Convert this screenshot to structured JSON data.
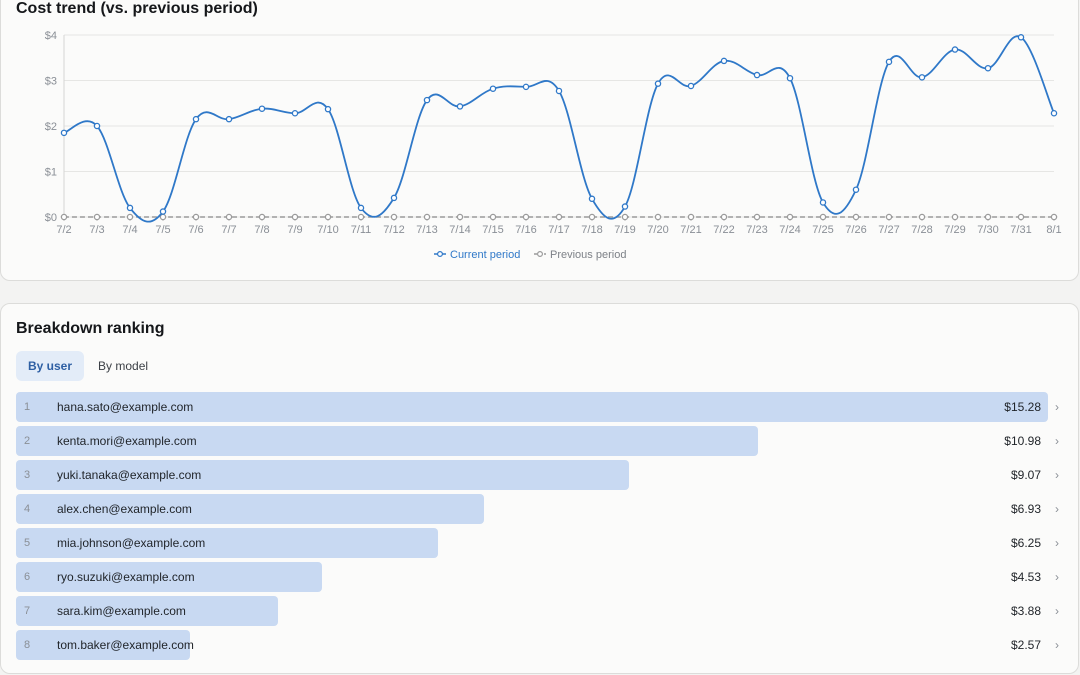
{
  "trend_card": {
    "title": "Cost trend (vs. previous period)"
  },
  "chart_data": {
    "type": "line",
    "title": "Cost trend (vs. previous period)",
    "x": [
      "7/2",
      "7/3",
      "7/4",
      "7/5",
      "7/6",
      "7/7",
      "7/8",
      "7/9",
      "7/10",
      "7/11",
      "7/12",
      "7/13",
      "7/14",
      "7/15",
      "7/16",
      "7/17",
      "7/18",
      "7/19",
      "7/20",
      "7/21",
      "7/22",
      "7/23",
      "7/24",
      "7/25",
      "7/26",
      "7/27",
      "7/28",
      "7/29",
      "7/30",
      "7/31",
      "8/1"
    ],
    "series": [
      {
        "name": "Current period",
        "color": "#2f78c8",
        "values": [
          1.85,
          2.0,
          0.2,
          0.12,
          2.15,
          2.15,
          2.38,
          2.28,
          2.37,
          0.2,
          0.42,
          2.57,
          2.43,
          2.82,
          2.86,
          2.77,
          0.4,
          0.23,
          2.93,
          2.88,
          3.43,
          3.12,
          3.05,
          0.32,
          0.6,
          3.41,
          3.07,
          3.68,
          3.27,
          3.95,
          2.28
        ]
      },
      {
        "name": "Previous period",
        "color": "#9a9a9a",
        "dashed": true,
        "values": [
          0,
          0,
          0,
          0,
          0,
          0,
          0,
          0,
          0,
          0,
          0,
          0,
          0,
          0,
          0,
          0,
          0,
          0,
          0,
          0,
          0,
          0,
          0,
          0,
          0,
          0,
          0,
          0,
          0,
          0,
          0
        ]
      }
    ],
    "y_ticks": [
      "$0",
      "$1",
      "$2",
      "$3",
      "$4"
    ],
    "ylim": [
      0,
      4
    ],
    "grid": true,
    "legend": "bottom-center"
  },
  "ranking_card": {
    "title": "Breakdown ranking",
    "tabs": [
      {
        "label": "By user",
        "active": true
      },
      {
        "label": "By model",
        "active": false
      }
    ],
    "rows": [
      {
        "rank": "1",
        "label": "hana.sato@example.com",
        "value": "$15.28",
        "amount": 15.28
      },
      {
        "rank": "2",
        "label": "kenta.mori@example.com",
        "value": "$10.98",
        "amount": 10.98
      },
      {
        "rank": "3",
        "label": "yuki.tanaka@example.com",
        "value": "$9.07",
        "amount": 9.07
      },
      {
        "rank": "4",
        "label": "alex.chen@example.com",
        "value": "$6.93",
        "amount": 6.93
      },
      {
        "rank": "5",
        "label": "mia.johnson@example.com",
        "value": "$6.25",
        "amount": 6.25
      },
      {
        "rank": "6",
        "label": "ryo.suzuki@example.com",
        "value": "$4.53",
        "amount": 4.53
      },
      {
        "rank": "7",
        "label": "sara.kim@example.com",
        "value": "$3.88",
        "amount": 3.88
      },
      {
        "rank": "8",
        "label": "tom.baker@example.com",
        "value": "$2.57",
        "amount": 2.57
      }
    ],
    "chevron_icon": "chevron-right-icon"
  }
}
